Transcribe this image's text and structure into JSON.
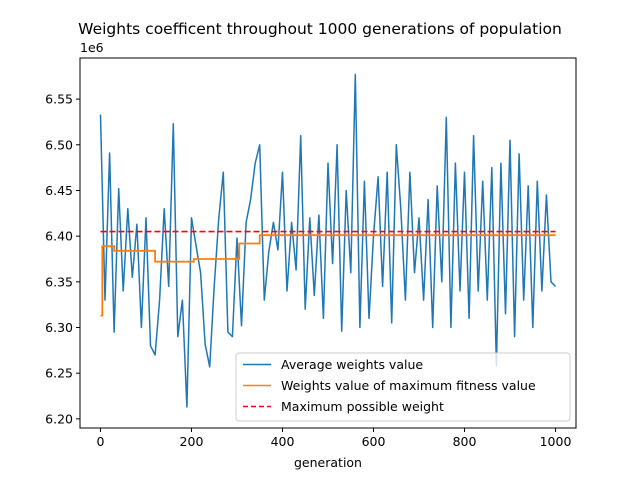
{
  "chart_data": {
    "type": "line",
    "title": "Weights coefficent throughout 1000 generations of population",
    "xlabel": "generation",
    "ylabel": "",
    "offset_label": "1e6",
    "xlim": [
      -45,
      1045
    ],
    "ylim": [
      6.19,
      6.595
    ],
    "x_ticks": [
      0,
      200,
      400,
      600,
      800,
      1000
    ],
    "y_ticks": [
      6.2,
      6.25,
      6.3,
      6.35,
      6.4,
      6.45,
      6.5,
      6.55
    ],
    "y_tick_labels": [
      "6.20",
      "6.25",
      "6.30",
      "6.35",
      "6.40",
      "6.45",
      "6.50",
      "6.55"
    ],
    "grid": false,
    "legend_position": "lower-right",
    "series": [
      {
        "name": "Average weights value",
        "color": "#1f77b4",
        "style": "solid",
        "x_start": 0,
        "x_step": 10,
        "values": [
          6.533,
          6.33,
          6.491,
          6.295,
          6.452,
          6.34,
          6.43,
          6.355,
          6.413,
          6.3,
          6.42,
          6.28,
          6.27,
          6.33,
          6.43,
          6.345,
          6.523,
          6.29,
          6.33,
          6.213,
          6.42,
          6.39,
          6.36,
          6.282,
          6.257,
          6.345,
          6.42,
          6.47,
          6.295,
          6.29,
          6.398,
          6.302,
          6.415,
          6.44,
          6.48,
          6.5,
          6.33,
          6.383,
          6.415,
          6.385,
          6.47,
          6.34,
          6.415,
          6.363,
          6.51,
          6.32,
          6.42,
          6.335,
          6.423,
          6.31,
          6.48,
          6.37,
          6.5,
          6.296,
          6.45,
          6.36,
          6.577,
          6.3,
          6.46,
          6.31,
          6.4,
          6.465,
          6.345,
          6.47,
          6.305,
          6.5,
          6.43,
          6.33,
          6.47,
          6.36,
          6.42,
          6.33,
          6.44,
          6.3,
          6.455,
          6.35,
          6.53,
          6.3,
          6.48,
          6.34,
          6.47,
          6.31,
          6.51,
          6.34,
          6.46,
          6.33,
          6.475,
          6.258,
          6.48,
          6.315,
          6.505,
          6.29,
          6.49,
          6.33,
          6.455,
          6.3,
          6.46,
          6.34,
          6.445,
          6.35,
          6.345
        ]
      },
      {
        "name": "Weights value of maximum fitness value",
        "color": "#ff7f0e",
        "style": "solid",
        "steps": [
          [
            0,
            6.313
          ],
          [
            4,
            6.389
          ],
          [
            30,
            6.384
          ],
          [
            120,
            6.372
          ],
          [
            205,
            6.375
          ],
          [
            305,
            6.392
          ],
          [
            350,
            6.401
          ],
          [
            1000,
            6.401
          ]
        ]
      },
      {
        "name": "Maximum possible weight",
        "color": "#ff0000",
        "style": "dashed",
        "x": [
          0,
          1000
        ],
        "values": [
          6.405,
          6.405
        ]
      }
    ]
  }
}
